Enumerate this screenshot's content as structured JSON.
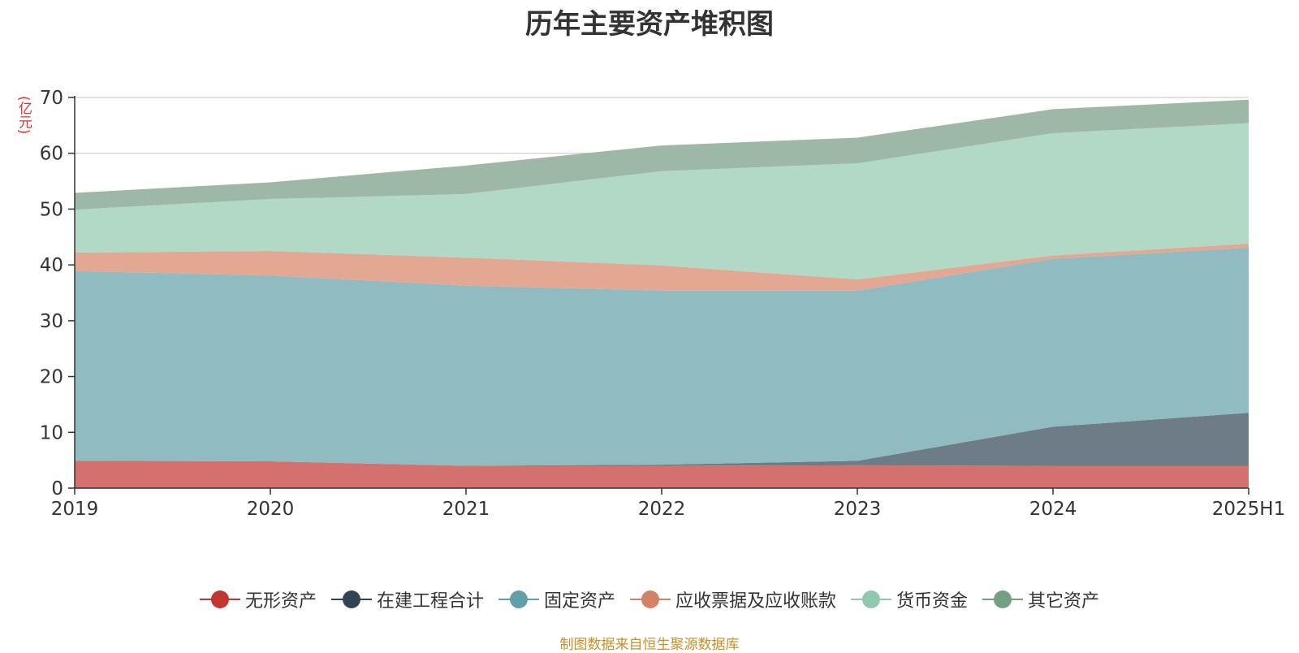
{
  "chart_data": {
    "type": "area",
    "stacked": true,
    "title": "历年主要资产堆积图",
    "unit_label": "(亿元)",
    "categories": [
      "2019",
      "2020",
      "2021",
      "2022",
      "2023",
      "2024",
      "2025H1"
    ],
    "ylim": [
      0,
      70
    ],
    "yticks": [
      "0",
      "10",
      "20",
      "30",
      "40",
      "50",
      "60",
      "70"
    ],
    "grid": true,
    "legend_position": "bottom",
    "series": [
      {
        "name": "无形资产",
        "color": "#c23531",
        "area_color": "#d4706d",
        "values": [
          4.9,
          4.8,
          4.0,
          4.0,
          4.1,
          4.0,
          4.0
        ]
      },
      {
        "name": "在建工程合计",
        "color": "#2f4554",
        "area_color": "#6d7c87",
        "values": [
          0.0,
          0.0,
          0.0,
          0.2,
          0.8,
          7.0,
          9.5
        ]
      },
      {
        "name": "固定资产",
        "color": "#61a0a8",
        "area_color": "#90bbc0",
        "values": [
          34.0,
          33.3,
          32.3,
          31.2,
          30.5,
          30.1,
          29.6
        ]
      },
      {
        "name": "应收票据及应收账款",
        "color": "#d48265",
        "area_color": "#e2a893",
        "values": [
          3.3,
          4.4,
          5.0,
          4.5,
          2.0,
          0.6,
          0.7
        ]
      },
      {
        "name": "货币资金",
        "color": "#91c7ae",
        "area_color": "#b2d8c6",
        "values": [
          7.7,
          9.3,
          11.4,
          16.9,
          20.8,
          21.9,
          21.6
        ]
      },
      {
        "name": "其它资产",
        "color": "#749f83",
        "area_color": "#9eb8a7",
        "values": [
          3.0,
          3.0,
          5.1,
          4.6,
          4.6,
          4.3,
          4.2
        ]
      }
    ]
  },
  "source_note": "制图数据来自恒生聚源数据库"
}
